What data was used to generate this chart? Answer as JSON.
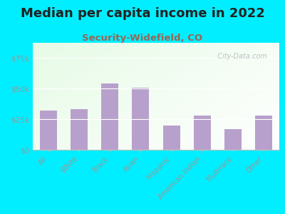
{
  "title": "Median per capita income in 2022",
  "subtitle": "Security-Widefield, CO",
  "categories": [
    "All",
    "White",
    "Black",
    "Asian",
    "Hispanic",
    "American Indian",
    "Multirace",
    "Other"
  ],
  "values": [
    32000,
    33000,
    54000,
    51000,
    20000,
    28000,
    17000,
    28000
  ],
  "bar_color": "#b8a0cc",
  "background_outer": "#00eeff",
  "title_fontsize": 13,
  "subtitle_fontsize": 9.5,
  "subtitle_color": "#996655",
  "tick_color": "#999999",
  "axis_label_color": "#999999",
  "ylim": [
    0,
    87500
  ],
  "yticks": [
    0,
    25000,
    50000,
    75000
  ],
  "ytick_labels": [
    "$0",
    "$25k",
    "$50k",
    "$75k"
  ],
  "watermark": "  City-Data.com"
}
